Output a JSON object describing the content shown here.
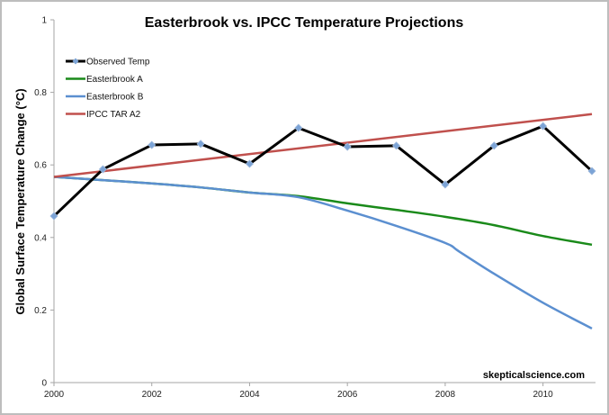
{
  "chart_data": {
    "type": "line",
    "title": "Easterbrook vs. IPCC Temperature Projections",
    "xlabel": "",
    "ylabel": "Global Surface Temperature Change (°C)",
    "xlim": [
      2000,
      2011
    ],
    "ylim": [
      0,
      1
    ],
    "x_ticks": [
      2000,
      2002,
      2004,
      2006,
      2008,
      2010
    ],
    "x_tick_labels": [
      "2000",
      "2002",
      "2004",
      "2006",
      "2008",
      "2010"
    ],
    "y_ticks": [
      0,
      0.2,
      0.4,
      0.6,
      0.8,
      1
    ],
    "y_tick_labels": [
      "0",
      "0.2",
      "0.4",
      "0.6",
      "0.8",
      "1"
    ],
    "grid": false,
    "legend_position": "top-left",
    "series": [
      {
        "name": "Observed Temp",
        "color": "#000000",
        "marker": "diamond",
        "marker_color": "#7ba3d6",
        "x": [
          2000,
          2001,
          2002,
          2003,
          2004,
          2005,
          2006,
          2007,
          2008,
          2009,
          2010,
          2011
        ],
        "values": [
          0.459,
          0.588,
          0.655,
          0.658,
          0.603,
          0.702,
          0.65,
          0.653,
          0.546,
          0.653,
          0.707,
          0.583
        ]
      },
      {
        "name": "Easterbrook A",
        "color": "#1a8a1a",
        "marker": "none",
        "x": [
          2000,
          2001,
          2002,
          2003,
          2004,
          2005,
          2006,
          2007,
          2008,
          2009,
          2010,
          2011
        ],
        "values": [
          0.567,
          0.558,
          0.549,
          0.538,
          0.524,
          0.514,
          0.494,
          0.476,
          0.457,
          0.434,
          0.404,
          0.38
        ]
      },
      {
        "name": "Easterbrook B",
        "color": "#5b8fd0",
        "marker": "none",
        "x": [
          2000,
          2001,
          2002,
          2003,
          2004,
          2005,
          2006,
          2007,
          2008,
          2008.3,
          2009,
          2010,
          2011
        ],
        "values": [
          0.567,
          0.558,
          0.549,
          0.538,
          0.524,
          0.511,
          0.474,
          0.432,
          0.385,
          0.36,
          0.3,
          0.22,
          0.149
        ]
      },
      {
        "name": "IPCC TAR A2",
        "color": "#c0504d",
        "marker": "none",
        "x": [
          2000,
          2011
        ],
        "values": [
          0.567,
          0.74
        ]
      }
    ],
    "annotations": [
      "skepticalscience.com"
    ]
  }
}
